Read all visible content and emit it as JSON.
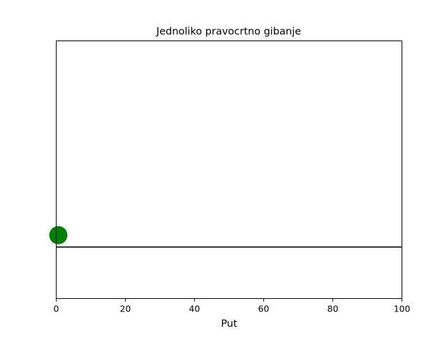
{
  "chart_data": {
    "type": "scatter",
    "title": "Jednoliko pravocrtno gibanje",
    "xlabel": "Put",
    "ylabel": "",
    "xlim": [
      0,
      100
    ],
    "ylim": [
      0,
      1
    ],
    "x_ticks": [
      0,
      20,
      40,
      60,
      80,
      100
    ],
    "y_ticks_visible": false,
    "grid": false,
    "track_line": {
      "y": 0.2,
      "x": [
        0,
        100
      ],
      "color": "#000000"
    },
    "series": [
      {
        "x": [
          0.5
        ],
        "y": [
          0.25
        ],
        "color": "#008000"
      }
    ]
  }
}
